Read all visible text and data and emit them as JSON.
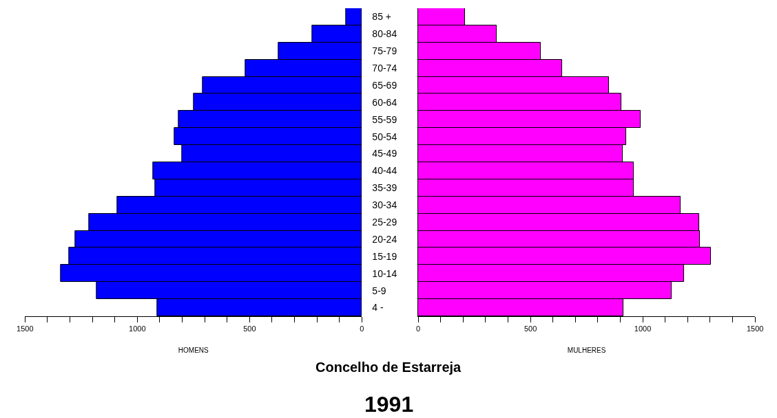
{
  "chart_data": [
    {
      "type": "bar",
      "orientation": "horizontal",
      "title": "Concelho de Estarreja",
      "subtitle": "1991",
      "xlabel": "HOMENS",
      "categories": [
        "85 +",
        "80-84",
        "75-79",
        "70-74",
        "65-69",
        "60-64",
        "55-59",
        "50-54",
        "45-49",
        "40-44",
        "35-39",
        "30-34",
        "25-29",
        "20-24",
        "15-19",
        "10-14",
        "5-9",
        "4 -"
      ],
      "series": [
        {
          "color": "#0000ff",
          "values": [
            70,
            220,
            370,
            520,
            710,
            750,
            815,
            835,
            800,
            930,
            920,
            1090,
            1215,
            1275,
            1305,
            1340,
            1180,
            910
          ]
        }
      ],
      "xlim": [
        1500,
        0
      ],
      "xticks": [
        0,
        {
          "value": 100,
          "label": null
        },
        {
          "value": 200,
          "label": null
        },
        {
          "value": 300,
          "label": null
        },
        {
          "value": 400,
          "label": null
        },
        500,
        {
          "value": 600,
          "label": null
        },
        {
          "value": 700,
          "label": null
        },
        {
          "value": 800,
          "label": null
        },
        {
          "value": 900,
          "label": null
        },
        1000,
        {
          "value": 1100,
          "label": null
        },
        {
          "value": 1200,
          "label": null
        },
        {
          "value": 1300,
          "label": null
        },
        {
          "value": 1400,
          "label": null
        },
        1500
      ],
      "legend": false
    },
    {
      "type": "bar",
      "orientation": "horizontal",
      "xlabel": "MULHERES",
      "tick_labels": "x",
      "categories": [
        "85 +",
        "80-84",
        "75-79",
        "70-74",
        "65-69",
        "60-64",
        "55-59",
        "50-54",
        "45-49",
        "40-44",
        "35-39",
        "30-34",
        "25-29",
        "20-24",
        "15-19",
        "10-14",
        "5-9",
        "4 -"
      ],
      "series": [
        {
          "color": "#ff00ff",
          "values": [
            210,
            350,
            545,
            640,
            850,
            905,
            990,
            925,
            910,
            960,
            960,
            1170,
            1250,
            1255,
            1305,
            1185,
            1130,
            915
          ]
        }
      ],
      "xlim": [
        0,
        1500
      ],
      "xticks": [
        0,
        {
          "value": 100,
          "label": null
        },
        {
          "value": 200,
          "label": null
        },
        {
          "value": 300,
          "label": null
        },
        {
          "value": 400,
          "label": null
        },
        500,
        {
          "value": 600,
          "label": null
        },
        {
          "value": 700,
          "label": null
        },
        {
          "value": 800,
          "label": null
        },
        {
          "value": 900,
          "label": null
        },
        1000,
        {
          "value": 1100,
          "label": null
        },
        {
          "value": 1200,
          "label": null
        },
        {
          "value": 1300,
          "label": null
        },
        {
          "value": 1400,
          "label": null
        },
        1500
      ],
      "legend": false
    }
  ]
}
